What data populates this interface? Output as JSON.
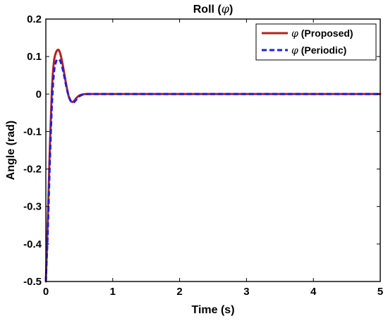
{
  "chart_data": {
    "type": "line",
    "title_prefix": "Roll (",
    "title_symbol": "φ",
    "title_suffix": ")",
    "xlabel": "Time (s)",
    "ylabel": "Angle (rad)",
    "xlim": [
      0,
      5
    ],
    "ylim": [
      -0.5,
      0.2
    ],
    "xticks": [
      0,
      1,
      2,
      3,
      4,
      5
    ],
    "yticks": [
      -0.5,
      -0.4,
      -0.3,
      -0.2,
      -0.1,
      0,
      0.1,
      0.2
    ],
    "xtick_labels": [
      "0",
      "1",
      "2",
      "3",
      "4",
      "5"
    ],
    "ytick_labels": [
      "-0.5",
      "-0.4",
      "-0.3",
      "-0.2",
      "-0.1",
      "0",
      "0.1",
      "0.2"
    ],
    "grid": false,
    "legend_position": "top-right",
    "series": [
      {
        "symbol": "φ",
        "name": "(Proposed)",
        "color": "#b22222",
        "style": "solid",
        "x": [
          0,
          0.03,
          0.06,
          0.09,
          0.12,
          0.15,
          0.18,
          0.2,
          0.22,
          0.25,
          0.28,
          0.31,
          0.34,
          0.37,
          0.4,
          0.43,
          0.46,
          0.5,
          0.55,
          0.6,
          0.7,
          0.8,
          1,
          2,
          3,
          4,
          5
        ],
        "y": [
          -0.5,
          -0.33,
          -0.14,
          0.01,
          0.085,
          0.11,
          0.118,
          0.115,
          0.105,
          0.08,
          0.05,
          0.02,
          -0.005,
          -0.018,
          -0.021,
          -0.017,
          -0.01,
          -0.004,
          -0.001,
          0,
          0,
          0,
          0,
          0,
          0,
          0,
          0
        ]
      },
      {
        "symbol": "φ",
        "name": "(Periodic)",
        "color": "#1f1fe0",
        "style": "dashed",
        "x": [
          0,
          0.03,
          0.06,
          0.09,
          0.12,
          0.15,
          0.18,
          0.21,
          0.24,
          0.27,
          0.3,
          0.33,
          0.36,
          0.39,
          0.42,
          0.45,
          0.48,
          0.52,
          0.57,
          0.62,
          0.7,
          0.8,
          1,
          2,
          3,
          4,
          5
        ],
        "y": [
          -0.5,
          -0.36,
          -0.18,
          -0.03,
          0.055,
          0.085,
          0.093,
          0.09,
          0.075,
          0.052,
          0.025,
          0.002,
          -0.014,
          -0.022,
          -0.022,
          -0.016,
          -0.009,
          -0.004,
          -0.001,
          0,
          0,
          0,
          0,
          0,
          0,
          0,
          0
        ]
      }
    ]
  }
}
